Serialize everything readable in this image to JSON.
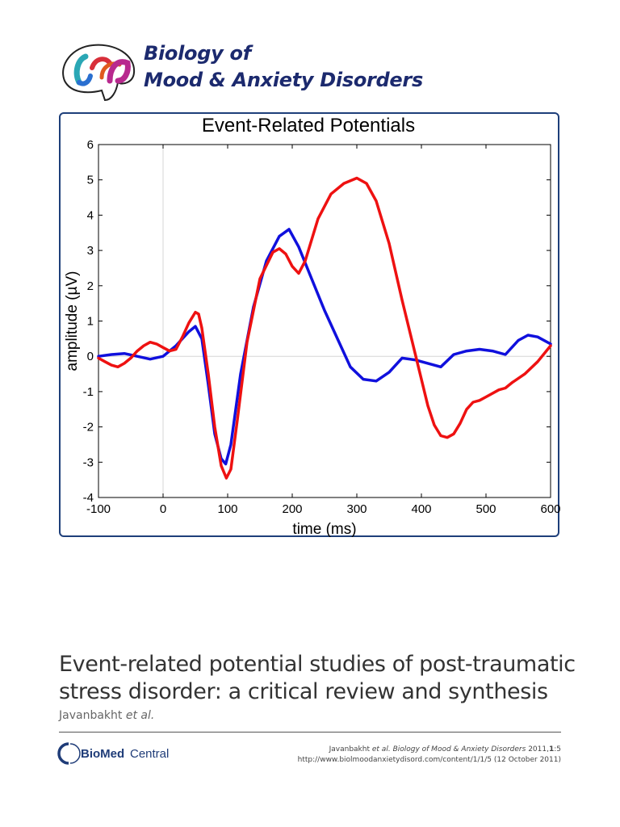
{
  "journal": {
    "line1": "Biology of",
    "line2": "Mood & Anxiety Disorders"
  },
  "logo_icon": "brain-logo-icon",
  "chart_data": {
    "type": "line",
    "title": "Event-Related Potentials",
    "xlabel": "time (ms)",
    "ylabel": "amplitude (µV)",
    "xlim": [
      -100,
      600
    ],
    "ylim": [
      -4,
      6
    ],
    "xticks": [
      -100,
      0,
      100,
      200,
      300,
      400,
      500,
      600
    ],
    "yticks": [
      -4,
      -3,
      -2,
      -1,
      0,
      1,
      2,
      3,
      4,
      5,
      6
    ],
    "xtick_labels": [
      "-100",
      "0",
      "100",
      "200",
      "300",
      "400",
      "500",
      "600"
    ],
    "ytick_labels": [
      "-4",
      "-3",
      "-2",
      "-1",
      "0",
      "1",
      "2",
      "3",
      "4",
      "5",
      "6"
    ],
    "grid": false,
    "reference_lines": [
      "x=0",
      "y=0"
    ],
    "series": [
      {
        "color": "#1010dd",
        "x": [
          -100,
          -80,
          -60,
          -40,
          -20,
          0,
          20,
          40,
          50,
          60,
          70,
          80,
          90,
          97,
          105,
          120,
          140,
          160,
          180,
          195,
          210,
          230,
          250,
          270,
          290,
          310,
          330,
          350,
          370,
          390,
          410,
          430,
          450,
          470,
          490,
          510,
          530,
          550,
          565,
          580,
          600
        ],
        "y": [
          0.0,
          0.05,
          0.08,
          0.0,
          -0.08,
          0.0,
          0.3,
          0.7,
          0.85,
          0.5,
          -0.8,
          -2.2,
          -2.9,
          -3.05,
          -2.5,
          -0.5,
          1.4,
          2.7,
          3.4,
          3.6,
          3.1,
          2.2,
          1.3,
          0.5,
          -0.3,
          -0.65,
          -0.7,
          -0.45,
          -0.05,
          -0.1,
          -0.2,
          -0.3,
          0.05,
          0.15,
          0.2,
          0.15,
          0.05,
          0.45,
          0.6,
          0.55,
          0.35
        ]
      },
      {
        "color": "#ee1111",
        "x": [
          -100,
          -90,
          -80,
          -70,
          -60,
          -50,
          -40,
          -30,
          -20,
          -10,
          0,
          10,
          20,
          30,
          40,
          50,
          55,
          60,
          70,
          80,
          90,
          98,
          105,
          115,
          130,
          150,
          170,
          180,
          190,
          200,
          210,
          220,
          240,
          260,
          280,
          300,
          315,
          330,
          350,
          370,
          390,
          410,
          420,
          430,
          440,
          450,
          460,
          470,
          480,
          490,
          500,
          520,
          530,
          540,
          560,
          580,
          600
        ],
        "y": [
          -0.05,
          -0.15,
          -0.25,
          -0.3,
          -0.2,
          -0.05,
          0.15,
          0.3,
          0.4,
          0.35,
          0.25,
          0.15,
          0.2,
          0.55,
          0.95,
          1.25,
          1.2,
          0.8,
          -0.5,
          -2.0,
          -3.1,
          -3.45,
          -3.2,
          -1.8,
          0.4,
          2.2,
          2.95,
          3.05,
          2.9,
          2.55,
          2.35,
          2.7,
          3.9,
          4.6,
          4.9,
          5.05,
          4.9,
          4.4,
          3.2,
          1.6,
          0.1,
          -1.4,
          -1.95,
          -2.25,
          -2.3,
          -2.2,
          -1.9,
          -1.5,
          -1.3,
          -1.25,
          -1.15,
          -0.95,
          -0.9,
          -0.75,
          -0.5,
          -0.15,
          0.3
        ]
      }
    ]
  },
  "article": {
    "title_line1": "Event-related potential studies of post-traumatic",
    "title_line2": "stress disorder: a critical review and synthesis",
    "author": "Javanbakht",
    "et_al": "et al."
  },
  "publisher": {
    "name_bold": "BioMed",
    "name_light": "Central",
    "icon": "biomed-central-logo-icon"
  },
  "citation": {
    "author": "Javanbakht",
    "et_al": "et al.",
    "journal": "Biology of Mood & Anxiety Disorders",
    "year": "2011,",
    "volume": "1",
    "article_no": ":5",
    "url": "http://www.biolmoodanxietydisord.com/content/1/1/5",
    "date": "(12 October 2011)"
  }
}
